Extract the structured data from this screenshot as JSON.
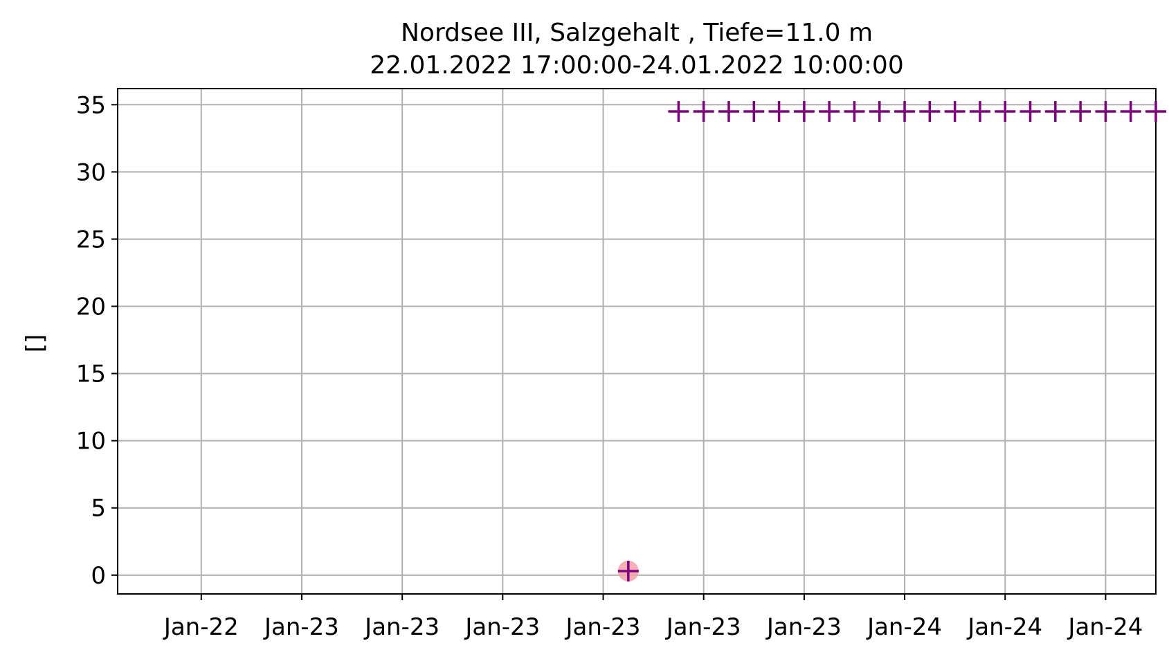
{
  "chart_data": {
    "type": "scatter",
    "title": "Nordsee III, Salzgehalt , Tiefe=11.0 m",
    "subtitle": "22.01.2022 17:00:00-24.01.2022 10:00:00",
    "xlabel": "",
    "ylabel": "[]",
    "x_hours": [
      "2022-01-22 17:00",
      "2022-01-24 10:00"
    ],
    "x_ticks": [
      {
        "time": "2022-01-22 20:00",
        "label": "Jan-22"
      },
      {
        "time": "2022-01-23 00:00",
        "label": "Jan-23"
      },
      {
        "time": "2022-01-23 04:00",
        "label": "Jan-23"
      },
      {
        "time": "2022-01-23 08:00",
        "label": "Jan-23"
      },
      {
        "time": "2022-01-23 12:00",
        "label": "Jan-23"
      },
      {
        "time": "2022-01-23 16:00",
        "label": "Jan-23"
      },
      {
        "time": "2022-01-23 20:00",
        "label": "Jan-23"
      },
      {
        "time": "2022-01-24 00:00",
        "label": "Jan-24"
      },
      {
        "time": "2022-01-24 04:00",
        "label": "Jan-24"
      },
      {
        "time": "2022-01-24 08:00",
        "label": "Jan-24"
      }
    ],
    "y_ticks": [
      0,
      5,
      10,
      15,
      20,
      25,
      30,
      35
    ],
    "ylim": [
      -1.4,
      36.2
    ],
    "grid": true,
    "marker_color": "#800080",
    "flag_color": "#f4a0a8",
    "flagged_points": [
      {
        "time": "2022-01-23 13:00",
        "value": 0.3
      }
    ],
    "points": [
      {
        "time": "2022-01-23 13:00",
        "value": 0.3
      },
      {
        "time": "2022-01-23 15:00",
        "value": 34.5
      },
      {
        "time": "2022-01-23 16:00",
        "value": 34.5
      },
      {
        "time": "2022-01-23 17:00",
        "value": 34.5
      },
      {
        "time": "2022-01-23 18:00",
        "value": 34.5
      },
      {
        "time": "2022-01-23 19:00",
        "value": 34.5
      },
      {
        "time": "2022-01-23 20:00",
        "value": 34.5
      },
      {
        "time": "2022-01-23 21:00",
        "value": 34.5
      },
      {
        "time": "2022-01-23 22:00",
        "value": 34.5
      },
      {
        "time": "2022-01-23 23:00",
        "value": 34.5
      },
      {
        "time": "2022-01-24 00:00",
        "value": 34.5
      },
      {
        "time": "2022-01-24 01:00",
        "value": 34.5
      },
      {
        "time": "2022-01-24 02:00",
        "value": 34.5
      },
      {
        "time": "2022-01-24 03:00",
        "value": 34.5
      },
      {
        "time": "2022-01-24 04:00",
        "value": 34.5
      },
      {
        "time": "2022-01-24 05:00",
        "value": 34.5
      },
      {
        "time": "2022-01-24 06:00",
        "value": 34.5
      },
      {
        "time": "2022-01-24 07:00",
        "value": 34.5
      },
      {
        "time": "2022-01-24 08:00",
        "value": 34.5
      },
      {
        "time": "2022-01-24 09:00",
        "value": 34.5
      },
      {
        "time": "2022-01-24 10:00",
        "value": 34.5
      }
    ]
  }
}
